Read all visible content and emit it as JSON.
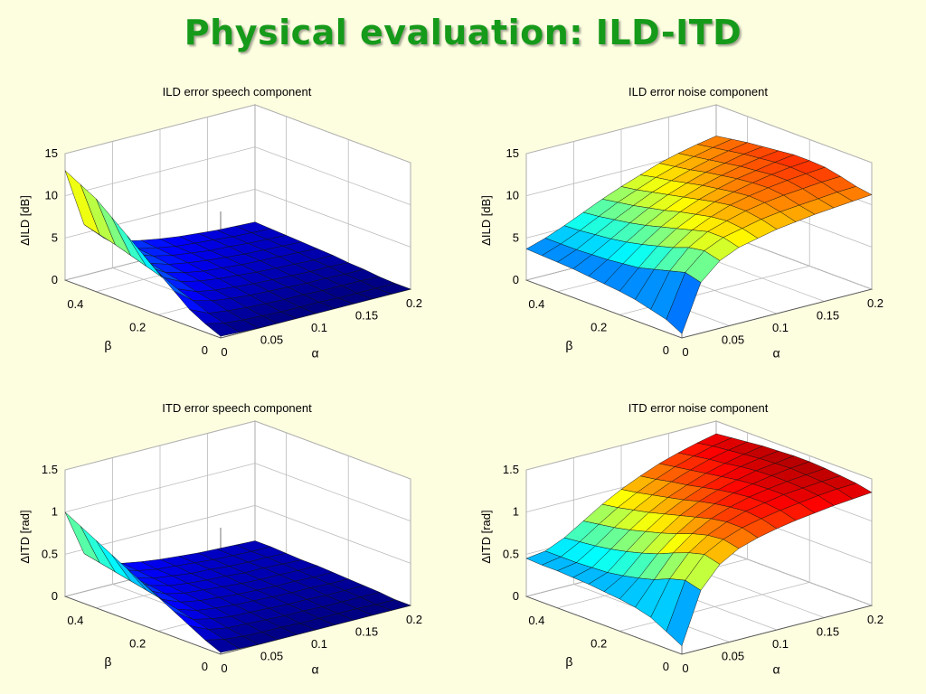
{
  "slide": {
    "title": "Physical evaluation: ILD-ITD"
  },
  "colormap": "jet",
  "chart_data": [
    {
      "type": "surface",
      "title": "ILD error speech component",
      "xlabel": "α",
      "ylabel": "β",
      "zlabel": "ΔILD [dB]",
      "xlim": [
        0,
        0.2
      ],
      "ylim": [
        0,
        0.5
      ],
      "zlim": [
        0,
        15
      ],
      "xticks": [
        "0",
        "0.05",
        "0.1",
        "0.15",
        "0.2"
      ],
      "yticks": [
        "0",
        "0.2",
        "0.4"
      ],
      "zticks": [
        "0",
        "5",
        "10",
        "15"
      ],
      "alpha": [
        0,
        0.02,
        0.04,
        0.06,
        0.08,
        0.1,
        0.12,
        0.14,
        0.16,
        0.18,
        0.2
      ],
      "beta": [
        0,
        0.05,
        0.1,
        0.15,
        0.2,
        0.25,
        0.3,
        0.35,
        0.4,
        0.45,
        0.5
      ],
      "z": [
        [
          0.2,
          0.1,
          0,
          0,
          0,
          0,
          0,
          0,
          0,
          0,
          0
        ],
        [
          1,
          0.5,
          0.3,
          0.2,
          0.1,
          0.1,
          0.1,
          0,
          0,
          0,
          0
        ],
        [
          2,
          1,
          0.7,
          0.5,
          0.4,
          0.3,
          0.3,
          0.2,
          0.2,
          0.2,
          0.1
        ],
        [
          3.5,
          1.8,
          1.2,
          0.9,
          0.7,
          0.6,
          0.5,
          0.4,
          0.4,
          0.3,
          0.3
        ],
        [
          5,
          2.5,
          1.6,
          1.2,
          1,
          0.8,
          0.7,
          0.6,
          0.5,
          0.5,
          0.4
        ],
        [
          6.5,
          3.2,
          2.1,
          1.6,
          1.3,
          1.1,
          0.9,
          0.8,
          0.7,
          0.6,
          0.6
        ],
        [
          8,
          3.8,
          2.5,
          1.9,
          1.5,
          1.3,
          1.1,
          1,
          0.9,
          0.8,
          0.7
        ],
        [
          9.5,
          4.4,
          2.9,
          2.2,
          1.8,
          1.5,
          1.3,
          1.1,
          1,
          0.9,
          0.8
        ],
        [
          11,
          5,
          3.3,
          2.5,
          2,
          1.7,
          1.4,
          1.3,
          1.1,
          1,
          0.9
        ],
        [
          12,
          5.5,
          3.6,
          2.7,
          2.2,
          1.8,
          1.6,
          1.4,
          1.2,
          1.1,
          1
        ],
        [
          13,
          6,
          3.9,
          2.9,
          2.4,
          2,
          1.7,
          1.5,
          1.3,
          1.2,
          1.1
        ]
      ]
    },
    {
      "type": "surface",
      "title": "ILD error noise component",
      "xlabel": "α",
      "ylabel": "β",
      "zlabel": "ΔILD [dB]",
      "xlim": [
        0,
        0.2
      ],
      "ylim": [
        0,
        0.5
      ],
      "zlim": [
        0,
        15
      ],
      "xticks": [
        "0",
        "0.05",
        "0.1",
        "0.15",
        "0.2"
      ],
      "yticks": [
        "0",
        "0.2",
        "0.4"
      ],
      "zticks": [
        "0",
        "5",
        "10",
        "15"
      ],
      "alpha": [
        0,
        0.02,
        0.04,
        0.06,
        0.08,
        0.1,
        0.12,
        0.14,
        0.16,
        0.18,
        0.2
      ],
      "beta": [
        0,
        0.05,
        0.1,
        0.15,
        0.2,
        0.25,
        0.3,
        0.35,
        0.4,
        0.45,
        0.5
      ],
      "z": [
        [
          0.5,
          6,
          8,
          9,
          9.5,
          10,
          10.3,
          10.6,
          10.8,
          11,
          11.2
        ],
        [
          1.5,
          6.5,
          8.5,
          9.5,
          10,
          10.5,
          10.8,
          11,
          11.2,
          11.4,
          11.5
        ],
        [
          2,
          6,
          8.2,
          9.5,
          10.2,
          10.8,
          11.2,
          11.5,
          11.7,
          11.9,
          12
        ],
        [
          2.5,
          5.5,
          7.5,
          9,
          10,
          10.8,
          11.3,
          11.7,
          12,
          12.2,
          12.4
        ],
        [
          2.8,
          5,
          7,
          8.5,
          9.6,
          10.5,
          11.1,
          11.6,
          12,
          12.3,
          12.5
        ],
        [
          3,
          4.8,
          6.5,
          8,
          9.2,
          10.1,
          10.8,
          11.4,
          11.8,
          12.2,
          12.5
        ],
        [
          3.2,
          4.6,
          6.1,
          7.5,
          8.7,
          9.7,
          10.5,
          11.1,
          11.6,
          12,
          12.3
        ],
        [
          3.4,
          4.5,
          5.8,
          7.1,
          8.3,
          9.3,
          10.1,
          10.8,
          11.3,
          11.8,
          12.1
        ],
        [
          3.5,
          4.4,
          5.6,
          6.8,
          7.9,
          8.9,
          9.7,
          10.4,
          11,
          11.5,
          11.9
        ],
        [
          3.6,
          4.4,
          5.4,
          6.5,
          7.6,
          8.5,
          9.4,
          10.1,
          10.7,
          11.2,
          11.6
        ],
        [
          3.7,
          4.4,
          5.3,
          6.3,
          7.3,
          8.2,
          9,
          9.8,
          10.4,
          10.9,
          11.3
        ]
      ]
    },
    {
      "type": "surface",
      "title": "ITD error speech component",
      "xlabel": "α",
      "ylabel": "β",
      "zlabel": "ΔITD [rad]",
      "xlim": [
        0,
        0.2
      ],
      "ylim": [
        0,
        0.5
      ],
      "zlim": [
        0,
        1.5
      ],
      "xticks": [
        "0",
        "0.05",
        "0.1",
        "0.15",
        "0.2"
      ],
      "yticks": [
        "0",
        "0.2",
        "0.4"
      ],
      "zticks": [
        "0",
        "0.5",
        "1",
        "1.5"
      ],
      "alpha": [
        0,
        0.02,
        0.04,
        0.06,
        0.08,
        0.1,
        0.12,
        0.14,
        0.16,
        0.18,
        0.2
      ],
      "beta": [
        0,
        0.05,
        0.1,
        0.15,
        0.2,
        0.25,
        0.3,
        0.35,
        0.4,
        0.45,
        0.5
      ],
      "z": [
        [
          0.02,
          0.01,
          0,
          0,
          0,
          0,
          0,
          0,
          0,
          0,
          0
        ],
        [
          0.1,
          0.05,
          0.03,
          0.02,
          0.02,
          0.01,
          0.01,
          0.01,
          0.01,
          0,
          0
        ],
        [
          0.2,
          0.1,
          0.06,
          0.05,
          0.04,
          0.03,
          0.03,
          0.02,
          0.02,
          0.02,
          0.02
        ],
        [
          0.3,
          0.15,
          0.1,
          0.07,
          0.06,
          0.05,
          0.04,
          0.04,
          0.03,
          0.03,
          0.03
        ],
        [
          0.4,
          0.2,
          0.13,
          0.1,
          0.08,
          0.07,
          0.06,
          0.05,
          0.05,
          0.04,
          0.04
        ],
        [
          0.5,
          0.25,
          0.16,
          0.12,
          0.1,
          0.08,
          0.07,
          0.06,
          0.06,
          0.05,
          0.05
        ],
        [
          0.6,
          0.29,
          0.19,
          0.14,
          0.12,
          0.1,
          0.08,
          0.07,
          0.07,
          0.06,
          0.06
        ],
        [
          0.7,
          0.33,
          0.22,
          0.16,
          0.13,
          0.11,
          0.1,
          0.08,
          0.08,
          0.07,
          0.06
        ],
        [
          0.8,
          0.37,
          0.24,
          0.18,
          0.15,
          0.12,
          0.11,
          0.09,
          0.08,
          0.08,
          0.07
        ],
        [
          0.9,
          0.41,
          0.27,
          0.2,
          0.16,
          0.14,
          0.12,
          0.1,
          0.09,
          0.08,
          0.08
        ],
        [
          1,
          0.45,
          0.29,
          0.22,
          0.18,
          0.15,
          0.13,
          0.11,
          0.1,
          0.09,
          0.08
        ]
      ]
    },
    {
      "type": "surface",
      "title": "ITD error noise component",
      "xlabel": "α",
      "ylabel": "β",
      "zlabel": "ΔITD [rad]",
      "xlim": [
        0,
        0.2
      ],
      "ylim": [
        0,
        0.5
      ],
      "zlim": [
        0,
        1.5
      ],
      "xticks": [
        "0",
        "0.05",
        "0.1",
        "0.15",
        "0.2"
      ],
      "yticks": [
        "0",
        "0.2",
        "0.4"
      ],
      "zticks": [
        "0",
        "0.5",
        "1",
        "1.5"
      ],
      "alpha": [
        0,
        0.02,
        0.04,
        0.06,
        0.08,
        0.1,
        0.12,
        0.14,
        0.16,
        0.18,
        0.2
      ],
      "beta": [
        0,
        0.05,
        0.1,
        0.15,
        0.2,
        0.25,
        0.3,
        0.35,
        0.4,
        0.45,
        0.5
      ],
      "z": [
        [
          0.1,
          0.7,
          0.95,
          1.08,
          1.15,
          1.2,
          1.24,
          1.27,
          1.3,
          1.32,
          1.34
        ],
        [
          0.2,
          0.75,
          1,
          1.12,
          1.2,
          1.25,
          1.29,
          1.32,
          1.35,
          1.37,
          1.38
        ],
        [
          0.3,
          0.7,
          0.95,
          1.1,
          1.2,
          1.27,
          1.31,
          1.35,
          1.37,
          1.39,
          1.4
        ],
        [
          0.35,
          0.62,
          0.88,
          1.05,
          1.17,
          1.25,
          1.31,
          1.35,
          1.38,
          1.4,
          1.42
        ],
        [
          0.38,
          0.57,
          0.8,
          0.98,
          1.12,
          1.22,
          1.29,
          1.34,
          1.38,
          1.41,
          1.43
        ],
        [
          0.4,
          0.53,
          0.74,
          0.92,
          1.07,
          1.18,
          1.26,
          1.32,
          1.37,
          1.4,
          1.43
        ],
        [
          0.42,
          0.5,
          0.69,
          0.87,
          1.02,
          1.13,
          1.22,
          1.29,
          1.35,
          1.39,
          1.42
        ],
        [
          0.43,
          0.49,
          0.65,
          0.82,
          0.97,
          1.09,
          1.18,
          1.26,
          1.32,
          1.37,
          1.41
        ],
        [
          0.44,
          0.48,
          0.62,
          0.78,
          0.93,
          1.05,
          1.15,
          1.23,
          1.3,
          1.35,
          1.39
        ],
        [
          0.44,
          0.48,
          0.6,
          0.75,
          0.89,
          1.01,
          1.11,
          1.2,
          1.27,
          1.33,
          1.37
        ],
        [
          0.45,
          0.48,
          0.58,
          0.72,
          0.86,
          0.98,
          1.08,
          1.17,
          1.24,
          1.3,
          1.35
        ]
      ]
    }
  ]
}
